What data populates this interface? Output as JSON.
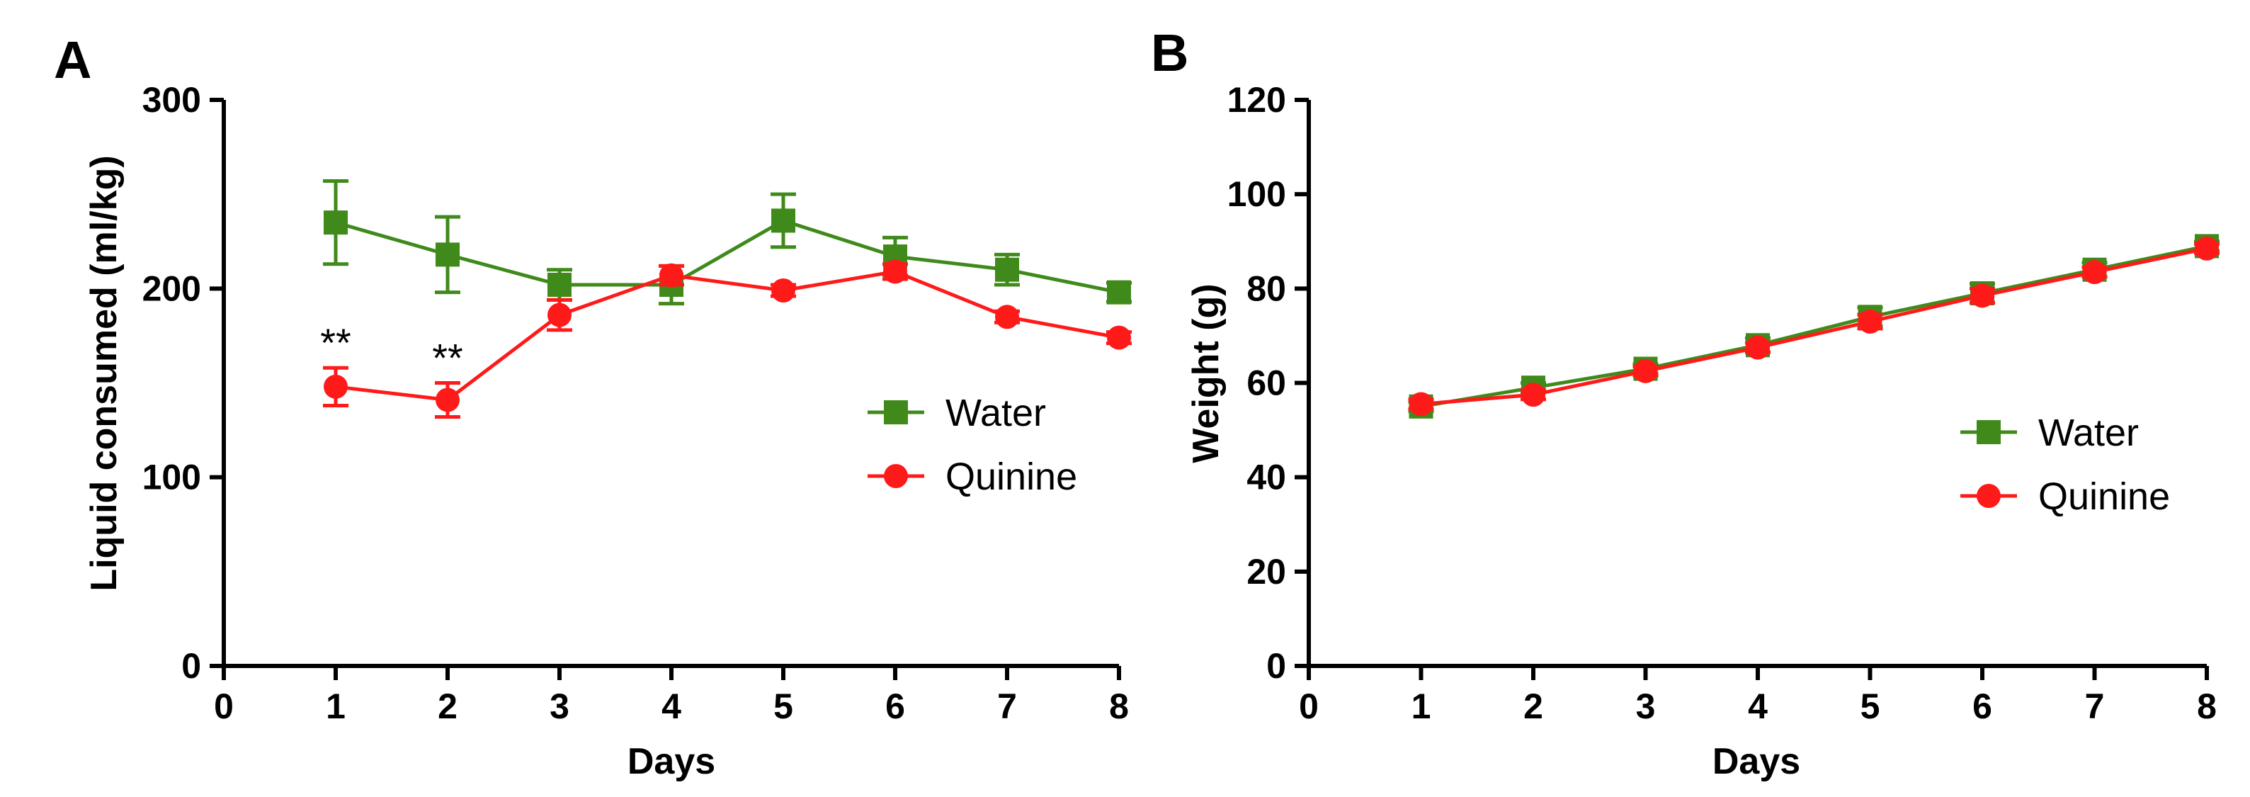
{
  "chart_data": [
    {
      "panel": "A",
      "type": "line",
      "title": "",
      "xlabel": "Days",
      "ylabel": "Liquid consumed (ml/kg)",
      "xlim": [
        0,
        8
      ],
      "ylim": [
        0,
        300
      ],
      "xticks": [
        0,
        1,
        2,
        3,
        4,
        5,
        6,
        7,
        8
      ],
      "yticks": [
        0,
        100,
        200,
        300
      ],
      "grid": false,
      "legend_position": "center-right",
      "series": [
        {
          "name": "Water",
          "color": "#3f8a1b",
          "marker": "square",
          "x": [
            1,
            2,
            3,
            4,
            5,
            6,
            7,
            8
          ],
          "y": [
            235,
            218,
            202,
            202,
            236,
            217,
            210,
            198
          ],
          "err": [
            22,
            20,
            8,
            10,
            14,
            10,
            8,
            5
          ]
        },
        {
          "name": "Quinine",
          "color": "#ff1a1a",
          "marker": "circle",
          "x": [
            1,
            2,
            3,
            4,
            5,
            6,
            7,
            8
          ],
          "y": [
            148,
            141,
            186,
            207,
            199,
            209,
            185,
            174
          ],
          "err": [
            10,
            9,
            8,
            5,
            3,
            4,
            3,
            3
          ]
        }
      ],
      "annotations": [
        {
          "text": "**",
          "x": 1
        },
        {
          "text": "**",
          "x": 2
        }
      ]
    },
    {
      "panel": "B",
      "type": "line",
      "title": "",
      "xlabel": "Days",
      "ylabel": "Weight (g)",
      "xlim": [
        0,
        8
      ],
      "ylim": [
        0,
        120
      ],
      "xticks": [
        0,
        1,
        2,
        3,
        4,
        5,
        6,
        7,
        8
      ],
      "yticks": [
        0,
        20,
        40,
        60,
        80,
        100,
        120
      ],
      "grid": false,
      "legend_position": "center-right",
      "series": [
        {
          "name": "Water",
          "color": "#3f8a1b",
          "marker": "square",
          "x": [
            1,
            2,
            3,
            4,
            5,
            6,
            7,
            8
          ],
          "y": [
            55,
            59,
            63,
            68,
            74,
            79,
            84,
            89
          ],
          "err": [
            1,
            1,
            1,
            1.5,
            2,
            2,
            1.5,
            1
          ]
        },
        {
          "name": "Quinine",
          "color": "#ff1a1a",
          "marker": "circle",
          "x": [
            1,
            2,
            3,
            4,
            5,
            6,
            7,
            8
          ],
          "y": [
            55.5,
            57.5,
            62.5,
            67.5,
            73,
            78.5,
            83.5,
            88.5
          ],
          "err": [
            1,
            1,
            1,
            1,
            1.5,
            1.5,
            1,
            1
          ]
        }
      ],
      "annotations": []
    }
  ]
}
